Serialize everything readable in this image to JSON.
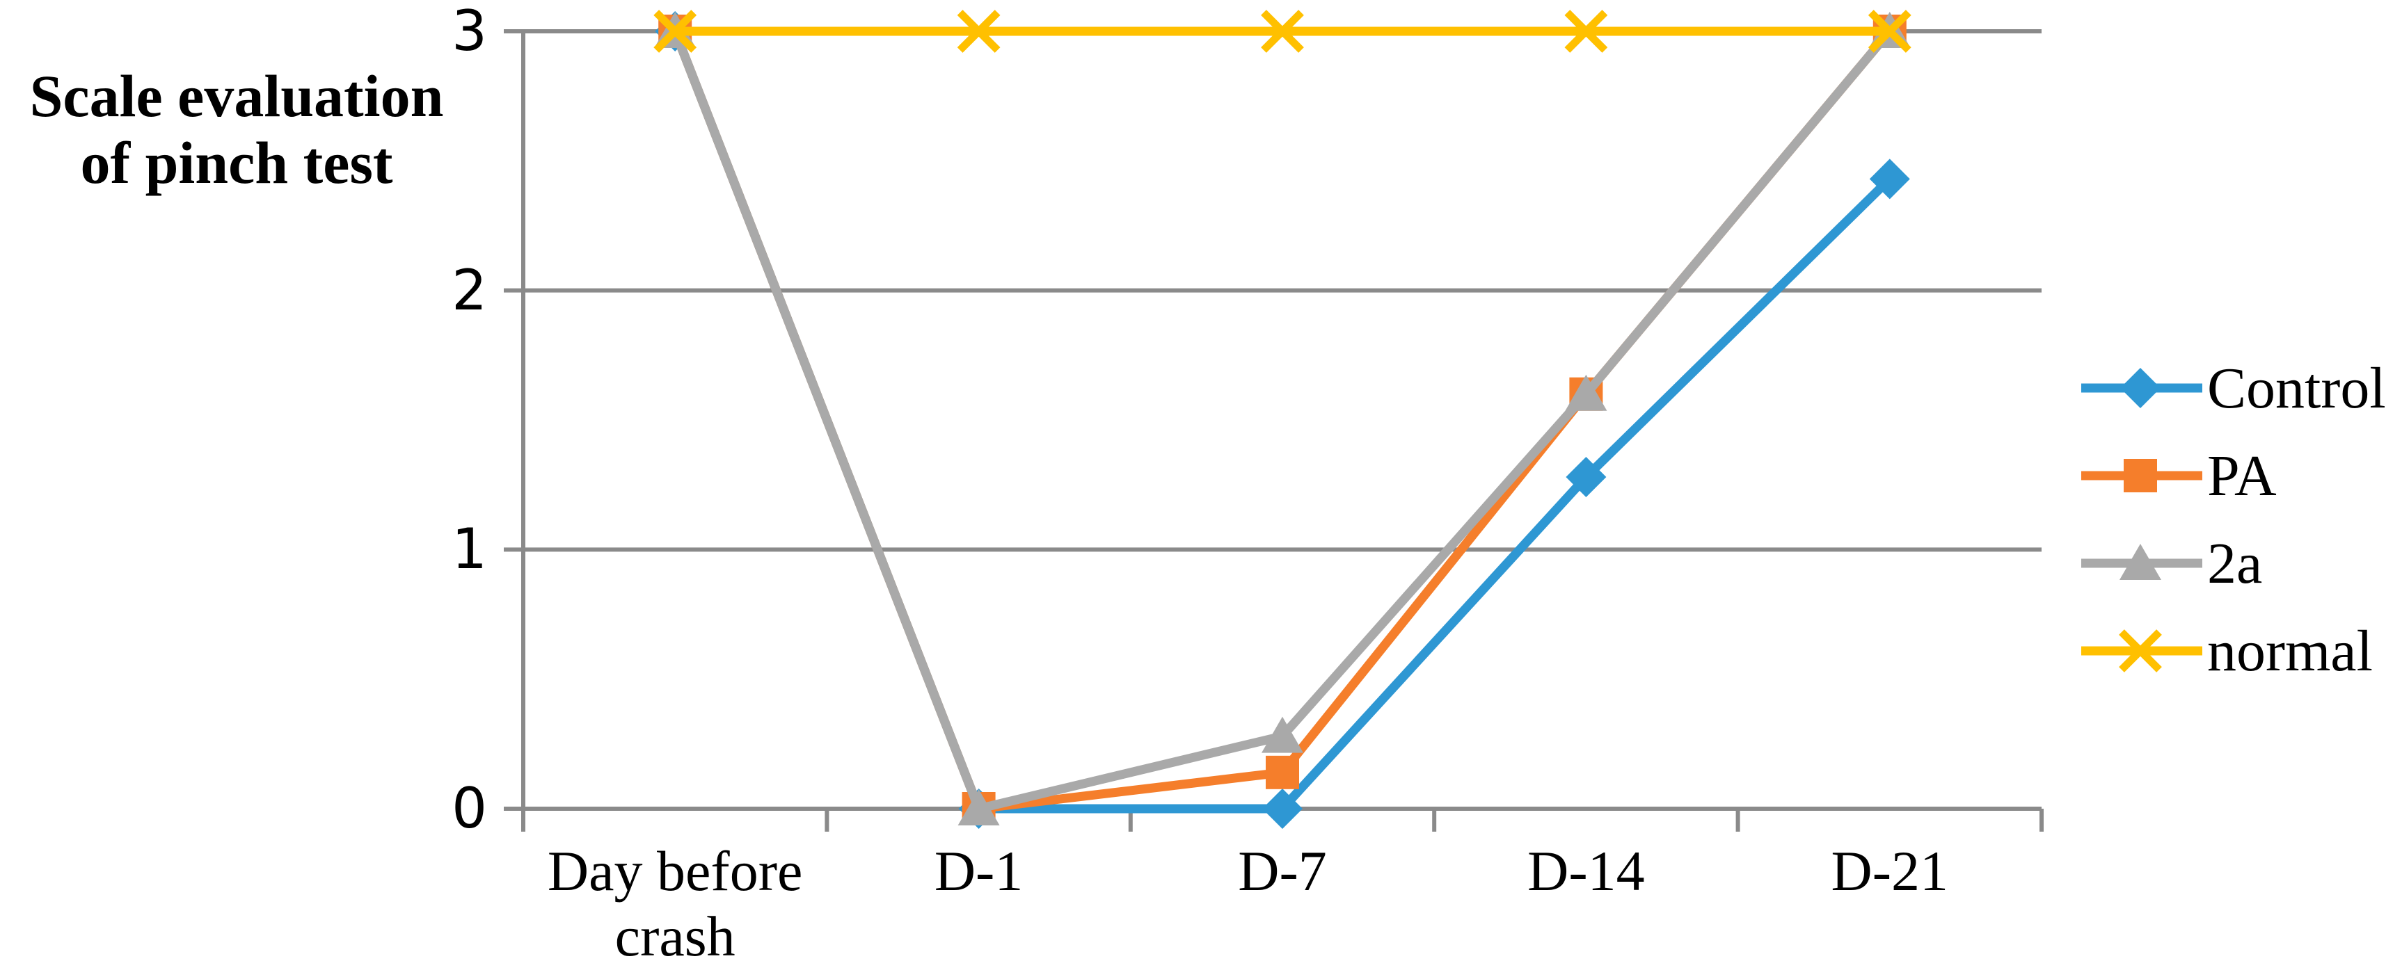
{
  "chart_data": {
    "type": "line",
    "title": "",
    "ylabel": "Scale evaluation of pinch test",
    "ylabel_lines": [
      "Scale evaluation",
      "of pinch test"
    ],
    "xlabel": "",
    "categories": [
      "Day before crash",
      "D-1",
      "D-7",
      "D-14",
      "D-21"
    ],
    "series": [
      {
        "name": "Control",
        "marker": "diamond",
        "color": "#2E97D3",
        "values": [
          3,
          0,
          0,
          1.28,
          2.43
        ]
      },
      {
        "name": "PA",
        "marker": "square",
        "color": "#F57E2B",
        "values": [
          3,
          0,
          0.14,
          1.6,
          3
        ]
      },
      {
        "name": "2a",
        "marker": "triangle",
        "color": "#A9A9A9",
        "values": [
          3,
          0,
          0.28,
          1.6,
          3
        ]
      },
      {
        "name": "normal",
        "marker": "x",
        "color": "#FFC000",
        "values": [
          3,
          3,
          3,
          3,
          3
        ]
      }
    ],
    "ylim": [
      0,
      3
    ],
    "yticks": [
      3,
      2,
      1,
      0
    ],
    "grid": true,
    "legend_position": "right",
    "axis_color": "#8A8A8A",
    "background": "#FFFFFF"
  }
}
